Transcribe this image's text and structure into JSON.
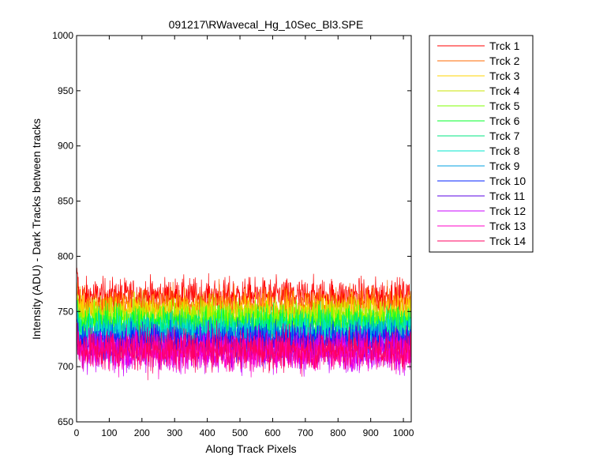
{
  "chart_data": {
    "type": "line",
    "title": "091217\\RWavecal_Hg_10Sec_Bl3.SPE",
    "xlabel": "Along Track Pixels",
    "ylabel": "Intensity (ADU) - Dark Tracks between tracks",
    "xlim": [
      0,
      1024
    ],
    "ylim": [
      650,
      1000
    ],
    "x_ticks": [
      0,
      100,
      200,
      300,
      400,
      500,
      600,
      700,
      800,
      900,
      1000
    ],
    "y_ticks": [
      650,
      700,
      750,
      800,
      850,
      900,
      950,
      1000
    ],
    "grid": false,
    "legend_position": "outside-right",
    "x_points": 1024,
    "series": [
      {
        "name": "Trck 1",
        "color": "#ff0000",
        "mean": 764,
        "noise": 8
      },
      {
        "name": "Trck 2",
        "color": "#ff6a00",
        "mean": 756,
        "noise": 8
      },
      {
        "name": "Trck 3",
        "color": "#ffd400",
        "mean": 750,
        "noise": 8
      },
      {
        "name": "Trck 4",
        "color": "#c8e600",
        "mean": 745,
        "noise": 8
      },
      {
        "name": "Trck 5",
        "color": "#7fff00",
        "mean": 742,
        "noise": 8
      },
      {
        "name": "Trck 6",
        "color": "#00ff2a",
        "mean": 738,
        "noise": 8
      },
      {
        "name": "Trck 7",
        "color": "#00e680",
        "mean": 735,
        "noise": 8
      },
      {
        "name": "Trck 8",
        "color": "#00e6cc",
        "mean": 731,
        "noise": 8
      },
      {
        "name": "Trck 9",
        "color": "#00a0e0",
        "mean": 727,
        "noise": 8
      },
      {
        "name": "Trck 10",
        "color": "#0020ff",
        "mean": 723,
        "noise": 8
      },
      {
        "name": "Trck 11",
        "color": "#5a00e6",
        "mean": 719,
        "noise": 8
      },
      {
        "name": "Trck 12",
        "color": "#c800ff",
        "mean": 714,
        "noise": 9
      },
      {
        "name": "Trck 13",
        "color": "#ff00c8",
        "mean": 713,
        "noise": 9
      },
      {
        "name": "Trck 14",
        "color": "#ff0060",
        "mean": 715,
        "noise": 9
      }
    ]
  }
}
